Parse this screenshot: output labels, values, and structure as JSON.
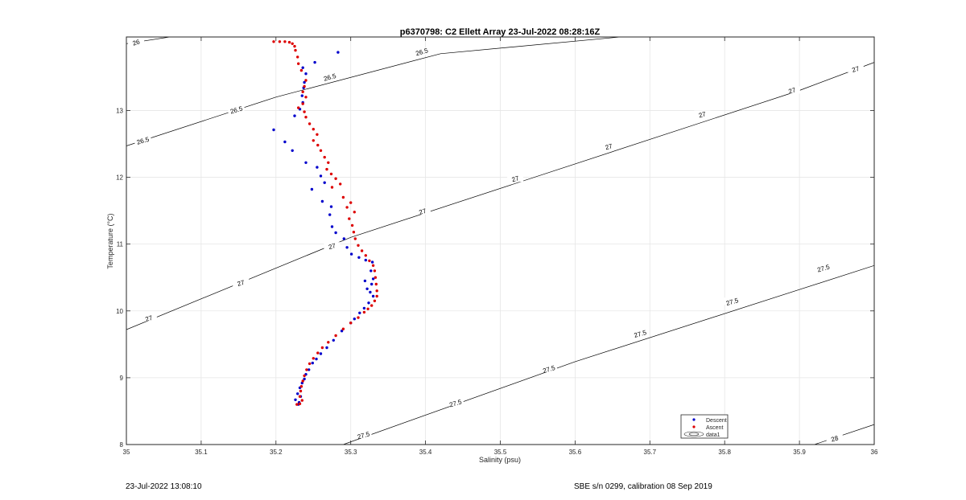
{
  "chart_data": {
    "type": "scatter",
    "title": "p6370798: C2 Ellett Array 23-Jul-2022 08:28:16Z",
    "xlabel": "Salinity (psu)",
    "ylabel": "Temperature (°C)",
    "xlim": [
      35,
      36
    ],
    "ylim": [
      8,
      14.1
    ],
    "xticks": [
      "35",
      "35.1",
      "35.2",
      "35.3",
      "35.4",
      "35.5",
      "35.6",
      "35.7",
      "35.8",
      "35.9",
      "36"
    ],
    "xtick_values": [
      35,
      35.1,
      35.2,
      35.3,
      35.4,
      35.5,
      35.6,
      35.7,
      35.8,
      35.9,
      36
    ],
    "yticks": [
      "8",
      "9",
      "10",
      "11",
      "12",
      "13"
    ],
    "ytick_values": [
      8,
      9,
      10,
      11,
      12,
      13
    ],
    "grid": true,
    "legend_position": "bottom-right",
    "legend": [
      "Descent",
      "Ascent",
      "data1"
    ],
    "series": [
      {
        "name": "Descent",
        "color": "#0000cc",
        "points": [
          [
            35.283,
            13.87
          ],
          [
            35.252,
            13.72
          ],
          [
            35.236,
            13.64
          ],
          [
            35.24,
            13.55
          ],
          [
            35.238,
            13.42
          ],
          [
            35.237,
            13.34
          ],
          [
            35.235,
            13.22
          ],
          [
            35.236,
            13.12
          ],
          [
            35.232,
            13.02
          ],
          [
            35.225,
            12.92
          ],
          [
            35.197,
            12.71
          ],
          [
            35.212,
            12.53
          ],
          [
            35.222,
            12.4
          ],
          [
            35.24,
            12.22
          ],
          [
            35.255,
            12.15
          ],
          [
            35.26,
            12.02
          ],
          [
            35.265,
            11.92
          ],
          [
            35.248,
            11.82
          ],
          [
            35.262,
            11.64
          ],
          [
            35.274,
            11.56
          ],
          [
            35.272,
            11.44
          ],
          [
            35.275,
            11.26
          ],
          [
            35.28,
            11.17
          ],
          [
            35.291,
            11.08
          ],
          [
            35.295,
            10.95
          ],
          [
            35.301,
            10.85
          ],
          [
            35.311,
            10.8
          ],
          [
            35.32,
            10.76
          ],
          [
            35.329,
            10.73
          ],
          [
            35.327,
            10.6
          ],
          [
            35.33,
            10.48
          ],
          [
            35.319,
            10.45
          ],
          [
            35.328,
            10.4
          ],
          [
            35.322,
            10.33
          ],
          [
            35.326,
            10.28
          ],
          [
            35.33,
            10.22
          ],
          [
            35.324,
            10.12
          ],
          [
            35.318,
            10.04
          ],
          [
            35.312,
            9.97
          ],
          [
            35.305,
            9.88
          ],
          [
            35.3,
            9.82
          ],
          [
            35.288,
            9.7
          ],
          [
            35.277,
            9.56
          ],
          [
            35.268,
            9.45
          ],
          [
            35.26,
            9.36
          ],
          [
            35.254,
            9.28
          ],
          [
            35.249,
            9.22
          ],
          [
            35.244,
            9.12
          ],
          [
            35.24,
            9.05
          ],
          [
            35.238,
            8.98
          ],
          [
            35.235,
            8.92
          ],
          [
            35.232,
            8.85
          ],
          [
            35.229,
            8.76
          ],
          [
            35.233,
            8.72
          ],
          [
            35.226,
            8.67
          ],
          [
            35.231,
            8.63
          ],
          [
            35.23,
            8.6
          ]
        ]
      },
      {
        "name": "Ascent",
        "color": "#dd0000",
        "points": [
          [
            35.197,
            14.03
          ],
          [
            35.205,
            14.03
          ],
          [
            35.212,
            14.03
          ],
          [
            35.218,
            14.02
          ],
          [
            35.222,
            14.0
          ],
          [
            35.225,
            13.96
          ],
          [
            35.226,
            13.9
          ],
          [
            35.229,
            13.8
          ],
          [
            35.23,
            13.7
          ],
          [
            35.234,
            13.6
          ],
          [
            35.24,
            13.45
          ],
          [
            35.238,
            13.36
          ],
          [
            35.236,
            13.28
          ],
          [
            35.24,
            13.2
          ],
          [
            35.236,
            13.1
          ],
          [
            35.23,
            13.04
          ],
          [
            35.238,
            12.98
          ],
          [
            35.24,
            12.9
          ],
          [
            35.245,
            12.8
          ],
          [
            35.25,
            12.72
          ],
          [
            35.255,
            12.64
          ],
          [
            35.25,
            12.55
          ],
          [
            35.256,
            12.48
          ],
          [
            35.26,
            12.4
          ],
          [
            35.265,
            12.3
          ],
          [
            35.27,
            12.22
          ],
          [
            35.268,
            12.12
          ],
          [
            35.274,
            12.05
          ],
          [
            35.28,
            11.98
          ],
          [
            35.286,
            11.9
          ],
          [
            35.275,
            11.85
          ],
          [
            35.29,
            11.7
          ],
          [
            35.3,
            11.62
          ],
          [
            35.295,
            11.55
          ],
          [
            35.305,
            11.48
          ],
          [
            35.298,
            11.38
          ],
          [
            35.302,
            11.28
          ],
          [
            35.304,
            11.18
          ],
          [
            35.306,
            11.08
          ],
          [
            35.31,
            10.98
          ],
          [
            35.315,
            10.9
          ],
          [
            35.32,
            10.83
          ],
          [
            35.325,
            10.75
          ],
          [
            35.33,
            10.68
          ],
          [
            35.332,
            10.6
          ],
          [
            35.333,
            10.5
          ],
          [
            35.334,
            10.4
          ],
          [
            35.335,
            10.3
          ],
          [
            35.335,
            10.22
          ],
          [
            35.332,
            10.15
          ],
          [
            35.328,
            10.08
          ],
          [
            35.323,
            10.03
          ],
          [
            35.318,
            9.98
          ],
          [
            35.31,
            9.9
          ],
          [
            35.3,
            9.82
          ],
          [
            35.29,
            9.73
          ],
          [
            35.28,
            9.63
          ],
          [
            35.27,
            9.53
          ],
          [
            35.262,
            9.45
          ],
          [
            35.256,
            9.37
          ],
          [
            35.25,
            9.29
          ],
          [
            35.245,
            9.21
          ],
          [
            35.241,
            9.12
          ],
          [
            35.238,
            9.03
          ],
          [
            35.236,
            8.95
          ],
          [
            35.234,
            8.87
          ],
          [
            35.233,
            8.8
          ],
          [
            35.232,
            8.72
          ],
          [
            35.235,
            8.66
          ],
          [
            35.228,
            8.6
          ],
          [
            35.232,
            8.61
          ]
        ]
      }
    ],
    "contours": [
      {
        "level": "26",
        "color": "#000000",
        "segments": [
          [
            [
              35.0,
              14.0
            ],
            [
              35.07,
              14.12
            ]
          ]
        ],
        "labels": [
          [
            35.013,
            14.02
          ]
        ]
      },
      {
        "level": "26.5",
        "color": "#000000",
        "segments": [
          [
            [
              35.0,
              12.47
            ],
            [
              35.2,
              13.2
            ],
            [
              35.42,
              13.85
            ],
            [
              35.68,
              14.12
            ]
          ]
        ],
        "labels": [
          [
            35.022,
            12.55
          ],
          [
            35.147,
            13.01
          ],
          [
            35.272,
            13.5
          ],
          [
            35.395,
            13.88
          ],
          [
            35.52,
            14.12
          ],
          [
            35.645,
            14.38
          ]
        ]
      },
      {
        "level": "27",
        "color": "#000000",
        "segments": [
          [
            [
              35.0,
              9.72
            ],
            [
              35.3,
              11.1
            ],
            [
              35.6,
              12.2
            ],
            [
              35.9,
              13.3
            ],
            [
              36.0,
              13.72
            ]
          ]
        ],
        "labels": [
          [
            35.03,
            9.89
          ],
          [
            35.153,
            10.42
          ],
          [
            35.275,
            10.97
          ],
          [
            35.396,
            11.49
          ],
          [
            35.52,
            11.98
          ],
          [
            35.645,
            12.46
          ],
          [
            35.77,
            12.94
          ],
          [
            35.89,
            13.3
          ],
          [
            35.975,
            13.62
          ]
        ]
      },
      {
        "level": "27.5",
        "color": "#000000",
        "segments": [
          [
            [
              35.29,
              8.0
            ],
            [
              35.6,
              9.24
            ],
            [
              35.9,
              10.32
            ],
            [
              36.0,
              10.68
            ]
          ]
        ],
        "labels": [
          [
            35.317,
            8.14
          ],
          [
            35.44,
            8.62
          ],
          [
            35.565,
            9.13
          ],
          [
            35.687,
            9.66
          ],
          [
            35.81,
            10.14
          ],
          [
            35.932,
            10.64
          ]
        ]
      },
      {
        "level": "28",
        "color": "#000000",
        "segments": [
          [
            [
              35.92,
              8.0
            ],
            [
              36.0,
              8.3
            ]
          ]
        ],
        "labels": [
          [
            35.947,
            8.09
          ]
        ]
      }
    ]
  },
  "footer": {
    "left": "23-Jul-2022 13:08:10",
    "right": "SBE s/n 0299, calibration 08 Sep 2019"
  }
}
